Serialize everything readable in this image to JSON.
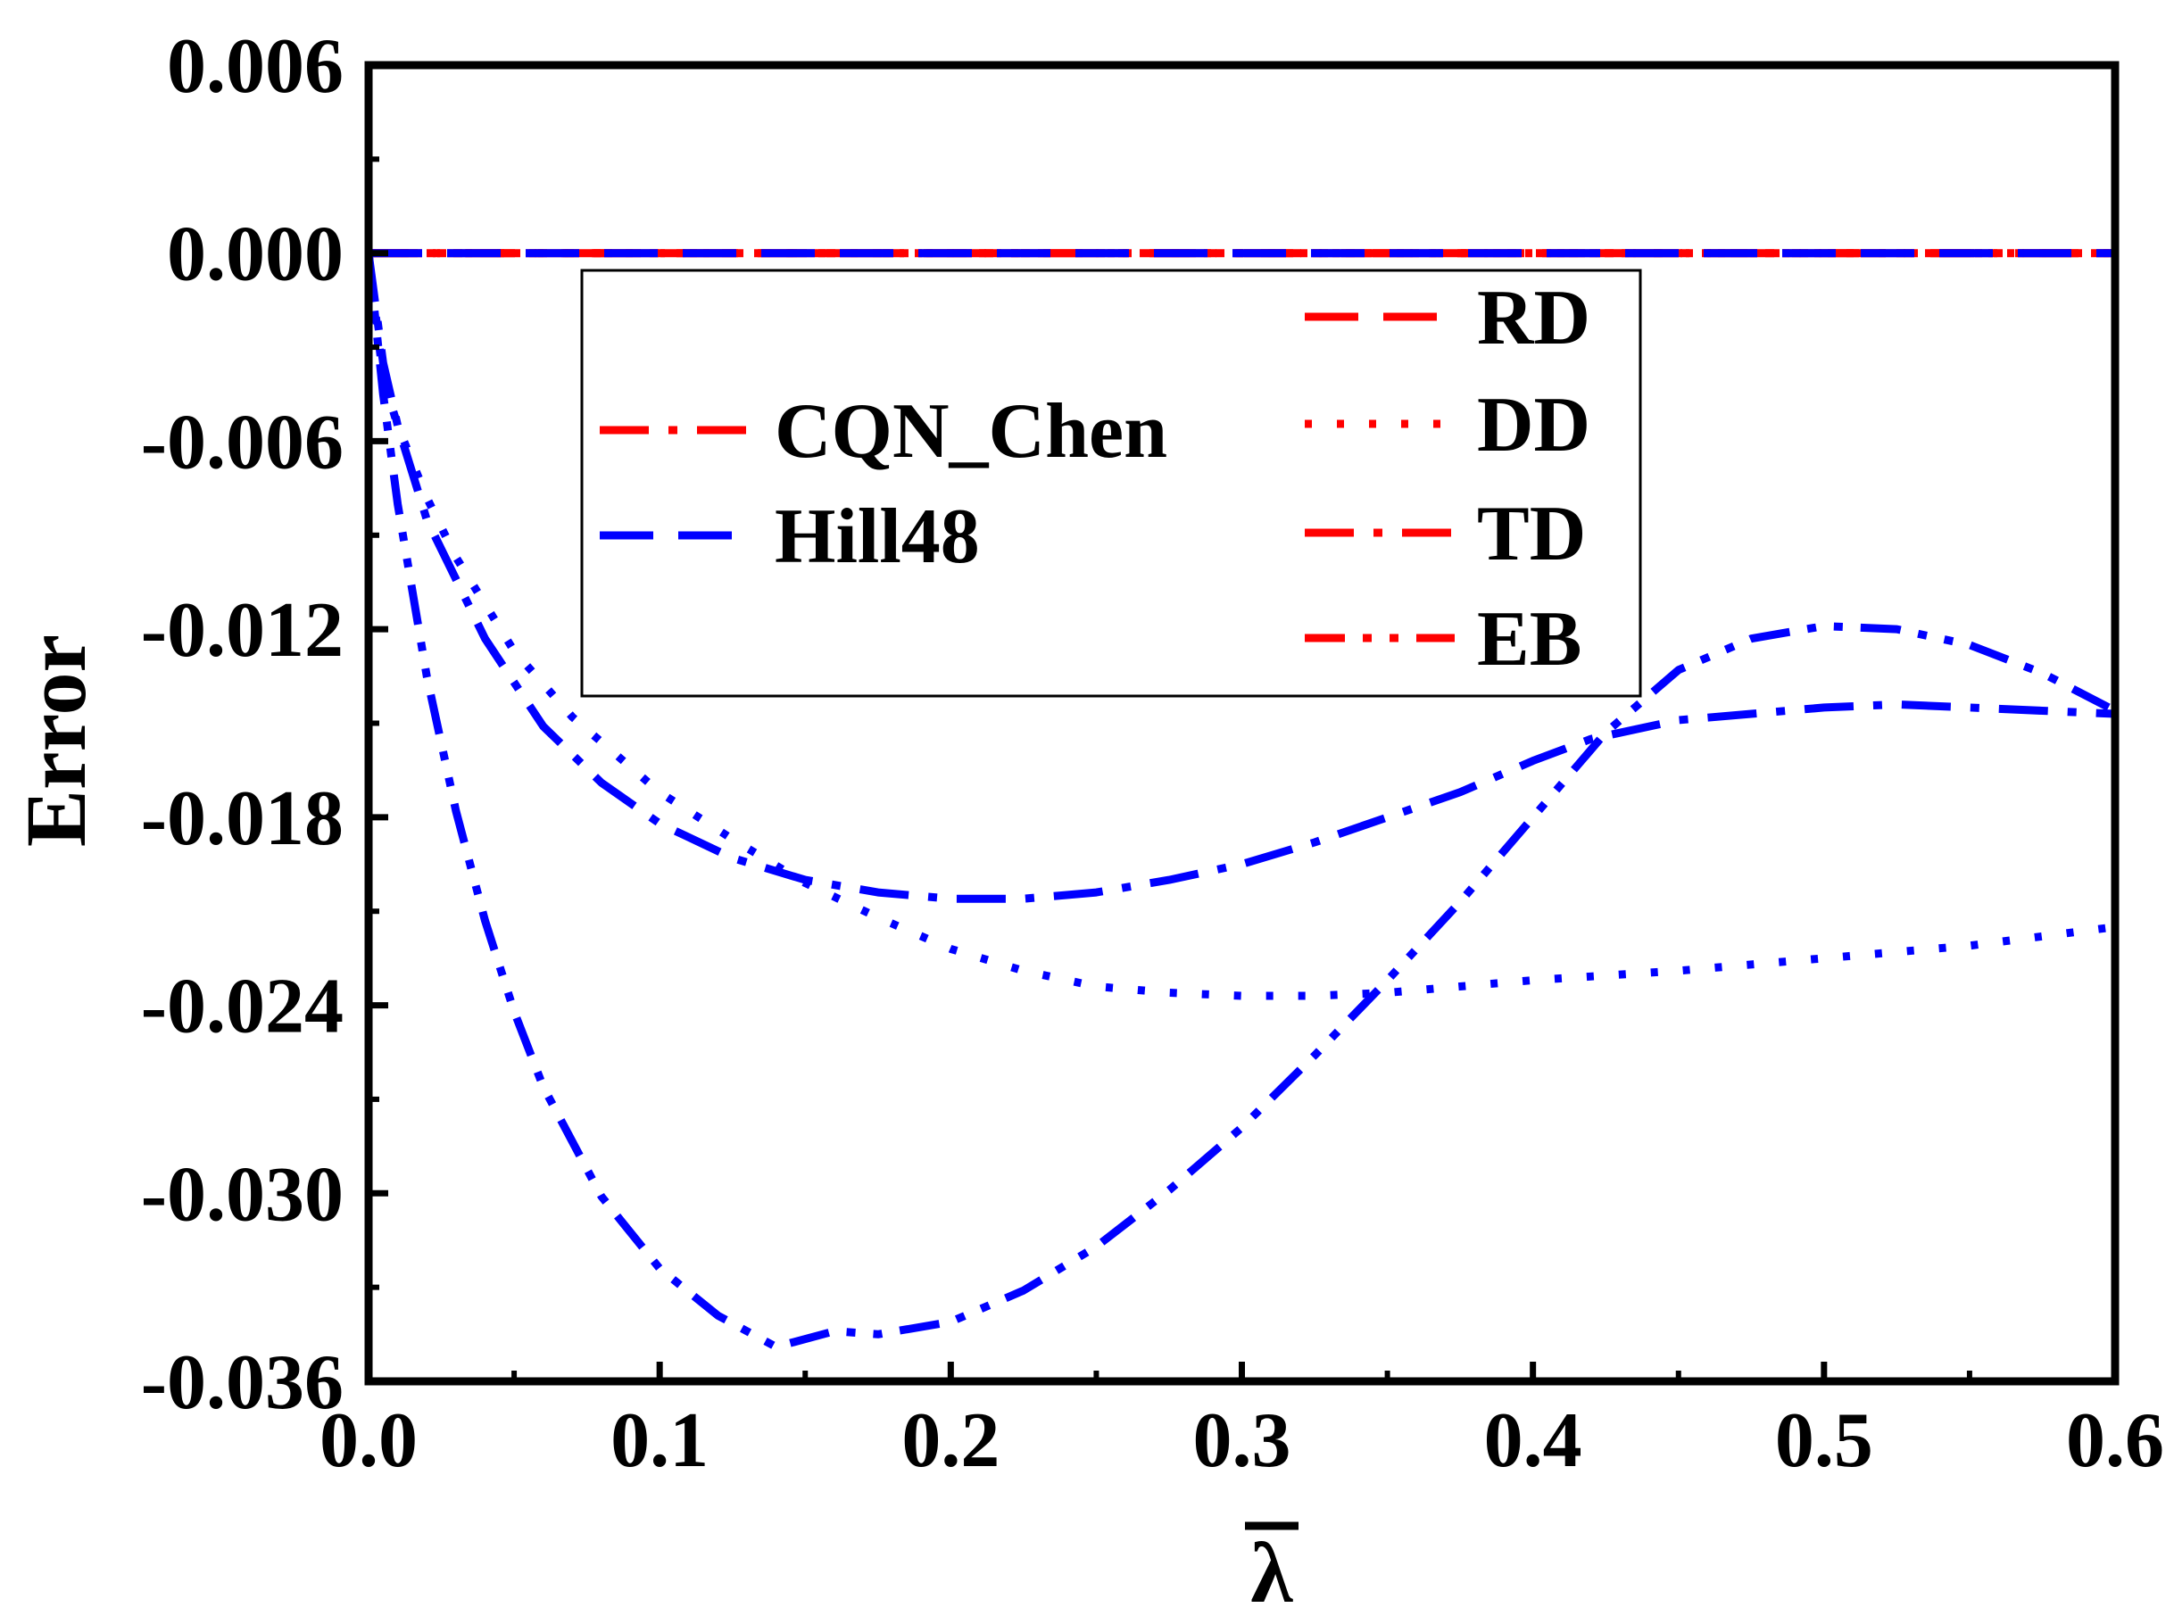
{
  "chart_data": {
    "type": "line",
    "title": "",
    "xlabel": "λ",
    "ylabel": "Error",
    "xlim": [
      0.0,
      0.6
    ],
    "ylim": [
      -0.036,
      0.006
    ],
    "x_ticks": [
      0.0,
      0.1,
      0.2,
      0.3,
      0.4,
      0.5,
      0.6
    ],
    "x_tick_labels": [
      "0.0",
      "0.1",
      "0.2",
      "0.3",
      "0.4",
      "0.5",
      "0.6"
    ],
    "y_ticks": [
      0.006,
      0.0,
      -0.006,
      -0.012,
      -0.018,
      -0.024,
      -0.03,
      -0.036
    ],
    "y_tick_labels": [
      "0.006",
      "0.000",
      "-0.006",
      "-0.012",
      "-0.018",
      "-0.024",
      "-0.030",
      "-0.036"
    ],
    "grid": false,
    "legend": {
      "position": "top-center",
      "model_entries": [
        {
          "label": "CQN_Chen",
          "color": "#ff0000",
          "style": "dash-dot"
        },
        {
          "label": "Hill48",
          "color": "#0000ff",
          "style": "dash"
        }
      ],
      "path_entries": [
        {
          "label": "RD",
          "color": "#ff0000",
          "style": "dash"
        },
        {
          "label": "DD",
          "color": "#ff0000",
          "style": "dot"
        },
        {
          "label": "TD",
          "color": "#ff0000",
          "style": "dash-dot"
        },
        {
          "label": "EB",
          "color": "#ff0000",
          "style": "dash-dot-dot"
        }
      ]
    },
    "series": [
      {
        "name": "CQN_Chen RD",
        "color": "#ff0000",
        "style": "dash",
        "x": [
          0.0,
          0.6
        ],
        "y": [
          0.0,
          0.0
        ]
      },
      {
        "name": "CQN_Chen DD",
        "color": "#ff0000",
        "style": "dot",
        "x": [
          0.0,
          0.6
        ],
        "y": [
          0.0,
          0.0
        ]
      },
      {
        "name": "CQN_Chen TD",
        "color": "#ff0000",
        "style": "dash-dot",
        "x": [
          0.0,
          0.6
        ],
        "y": [
          0.0,
          0.0
        ]
      },
      {
        "name": "CQN_Chen EB",
        "color": "#ff0000",
        "style": "dash-dot-dot",
        "x": [
          0.0,
          0.6
        ],
        "y": [
          0.0,
          0.0
        ]
      },
      {
        "name": "Hill48 RD",
        "color": "#0000ff",
        "style": "dash",
        "x": [
          0.0,
          0.6
        ],
        "y": [
          0.0,
          0.0
        ]
      },
      {
        "name": "Hill48 DD",
        "color": "#0000ff",
        "style": "dot",
        "x": [
          0.0,
          0.005,
          0.01,
          0.02,
          0.03,
          0.05,
          0.07,
          0.1,
          0.125,
          0.15,
          0.175,
          0.2,
          0.225,
          0.25,
          0.275,
          0.3,
          0.325,
          0.35,
          0.375,
          0.4,
          0.45,
          0.5,
          0.55,
          0.6
        ],
        "y": [
          0.0,
          -0.004,
          -0.0055,
          -0.0078,
          -0.0097,
          -0.0127,
          -0.0148,
          -0.0172,
          -0.0187,
          -0.0201,
          -0.0212,
          -0.0222,
          -0.0229,
          -0.0234,
          -0.0236,
          -0.0237,
          -0.0237,
          -0.0236,
          -0.0234,
          -0.0232,
          -0.0229,
          -0.0225,
          -0.0221,
          -0.0215
        ]
      },
      {
        "name": "Hill48 TD",
        "color": "#0000ff",
        "style": "dash-dot",
        "x": [
          0.0,
          0.005,
          0.01,
          0.02,
          0.04,
          0.06,
          0.08,
          0.1,
          0.125,
          0.15,
          0.175,
          0.2,
          0.225,
          0.25,
          0.275,
          0.3,
          0.325,
          0.35,
          0.375,
          0.4,
          0.42,
          0.45,
          0.475,
          0.5,
          0.525,
          0.55,
          0.575,
          0.6
        ],
        "y": [
          0.0,
          -0.0035,
          -0.0055,
          -0.0085,
          -0.0123,
          -0.0151,
          -0.0169,
          -0.0182,
          -0.0193,
          -0.02,
          -0.0204,
          -0.0206,
          -0.0206,
          -0.0204,
          -0.02,
          -0.0195,
          -0.0188,
          -0.018,
          -0.0172,
          -0.0162,
          -0.0155,
          -0.0149,
          -0.0147,
          -0.0145,
          -0.0144,
          -0.0145,
          -0.0146,
          -0.0147
        ]
      },
      {
        "name": "Hill48 EB",
        "color": "#0000ff",
        "style": "dash-dot-dot",
        "x": [
          0.0,
          0.005,
          0.01,
          0.02,
          0.03,
          0.04,
          0.05,
          0.06,
          0.08,
          0.1,
          0.12,
          0.14,
          0.16,
          0.175,
          0.2,
          0.225,
          0.25,
          0.275,
          0.3,
          0.325,
          0.35,
          0.375,
          0.4,
          0.425,
          0.45,
          0.475,
          0.5,
          0.525,
          0.55,
          0.575,
          0.6
        ],
        "y": [
          0.0,
          -0.0045,
          -0.008,
          -0.0135,
          -0.0178,
          -0.0213,
          -0.0242,
          -0.0266,
          -0.0301,
          -0.0324,
          -0.0339,
          -0.0349,
          -0.0344,
          -0.0345,
          -0.0341,
          -0.0331,
          -0.0317,
          -0.0299,
          -0.0279,
          -0.0256,
          -0.0232,
          -0.0207,
          -0.018,
          -0.0153,
          -0.0133,
          -0.0123,
          -0.0119,
          -0.012,
          -0.0125,
          -0.0134,
          -0.0146
        ]
      }
    ]
  }
}
